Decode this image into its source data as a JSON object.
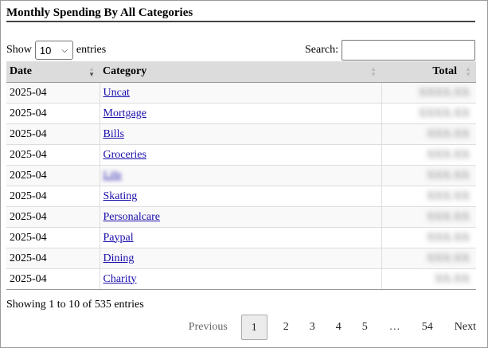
{
  "title": "Monthly Spending By All Categories",
  "length": {
    "show_label": "Show",
    "value": "10",
    "entries_label": "entries"
  },
  "search": {
    "label": "Search:",
    "value": ""
  },
  "columns": {
    "date": "Date",
    "category": "Category",
    "total": "Total"
  },
  "rows": [
    {
      "date": "2025-04",
      "category": "Uncat",
      "total": "XXXX.XX"
    },
    {
      "date": "2025-04",
      "category": "Mortgage",
      "total": "XXXX.XX"
    },
    {
      "date": "2025-04",
      "category": "Bills",
      "total": "XXX.XX"
    },
    {
      "date": "2025-04",
      "category": "Groceries",
      "total": "XXX.XX"
    },
    {
      "date": "2025-04",
      "category": "Life",
      "total": "XXX.XX"
    },
    {
      "date": "2025-04",
      "category": "Skating",
      "total": "XXX.XX"
    },
    {
      "date": "2025-04",
      "category": "Personalcare",
      "total": "XXX.XX"
    },
    {
      "date": "2025-04",
      "category": "Paypal",
      "total": "XXX.XX"
    },
    {
      "date": "2025-04",
      "category": "Dining",
      "total": "XXX.XX"
    },
    {
      "date": "2025-04",
      "category": "Charity",
      "total": "XX.XX"
    }
  ],
  "info": "Showing 1 to 10 of 535 entries",
  "pagination": {
    "previous": "Previous",
    "pages": [
      "1",
      "2",
      "3",
      "4",
      "5",
      "…",
      "54"
    ],
    "current": "1",
    "next": "Next"
  }
}
